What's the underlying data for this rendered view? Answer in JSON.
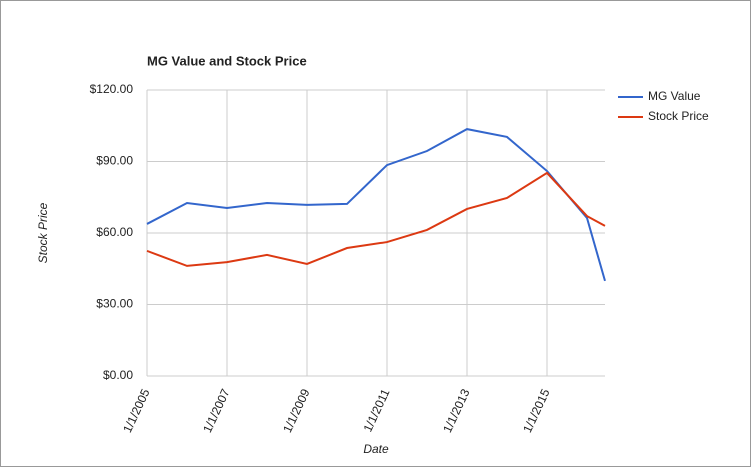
{
  "chart_data": {
    "type": "line",
    "title": "MG Value and Stock Price",
    "x_label": "Date",
    "y_label": "Stock Price",
    "x": [
      2005,
      2006,
      2007,
      2008,
      2009,
      2010,
      2011,
      2012,
      2013,
      2014,
      2015,
      2016,
      2016.45
    ],
    "series": [
      {
        "name": "MG Value",
        "color": "#3366cc",
        "values": [
          63.8,
          72.6,
          70.5,
          72.6,
          71.8,
          72.2,
          88.5,
          94.4,
          103.6,
          100.3,
          86,
          66.3,
          39.9
        ]
      },
      {
        "name": "Stock Price",
        "color": "#dc3912",
        "values": [
          52.5,
          46.2,
          47.8,
          50.8,
          47,
          53.7,
          56.2,
          61.3,
          70.1,
          74.7,
          85.2,
          67.1,
          63
        ]
      }
    ],
    "xlim": [
      2005,
      2016.45
    ],
    "xticks": [
      {
        "value": 2005,
        "label": "1/1/2005"
      },
      {
        "value": 2007,
        "label": "1/1/2007"
      },
      {
        "value": 2009,
        "label": "1/1/2009"
      },
      {
        "value": 2011,
        "label": "1/1/2011"
      },
      {
        "value": 2013,
        "label": "1/1/2013"
      },
      {
        "value": 2015,
        "label": "1/1/2015"
      }
    ],
    "ylim": [
      0,
      120
    ],
    "yticks": [
      {
        "value": 0,
        "label": "$0.00"
      },
      {
        "value": 30,
        "label": "$30.00"
      },
      {
        "value": 60,
        "label": "$60.00"
      },
      {
        "value": 90,
        "label": "$90.00"
      },
      {
        "value": 120,
        "label": "$120.00"
      }
    ],
    "grid": true,
    "legend": "right"
  }
}
